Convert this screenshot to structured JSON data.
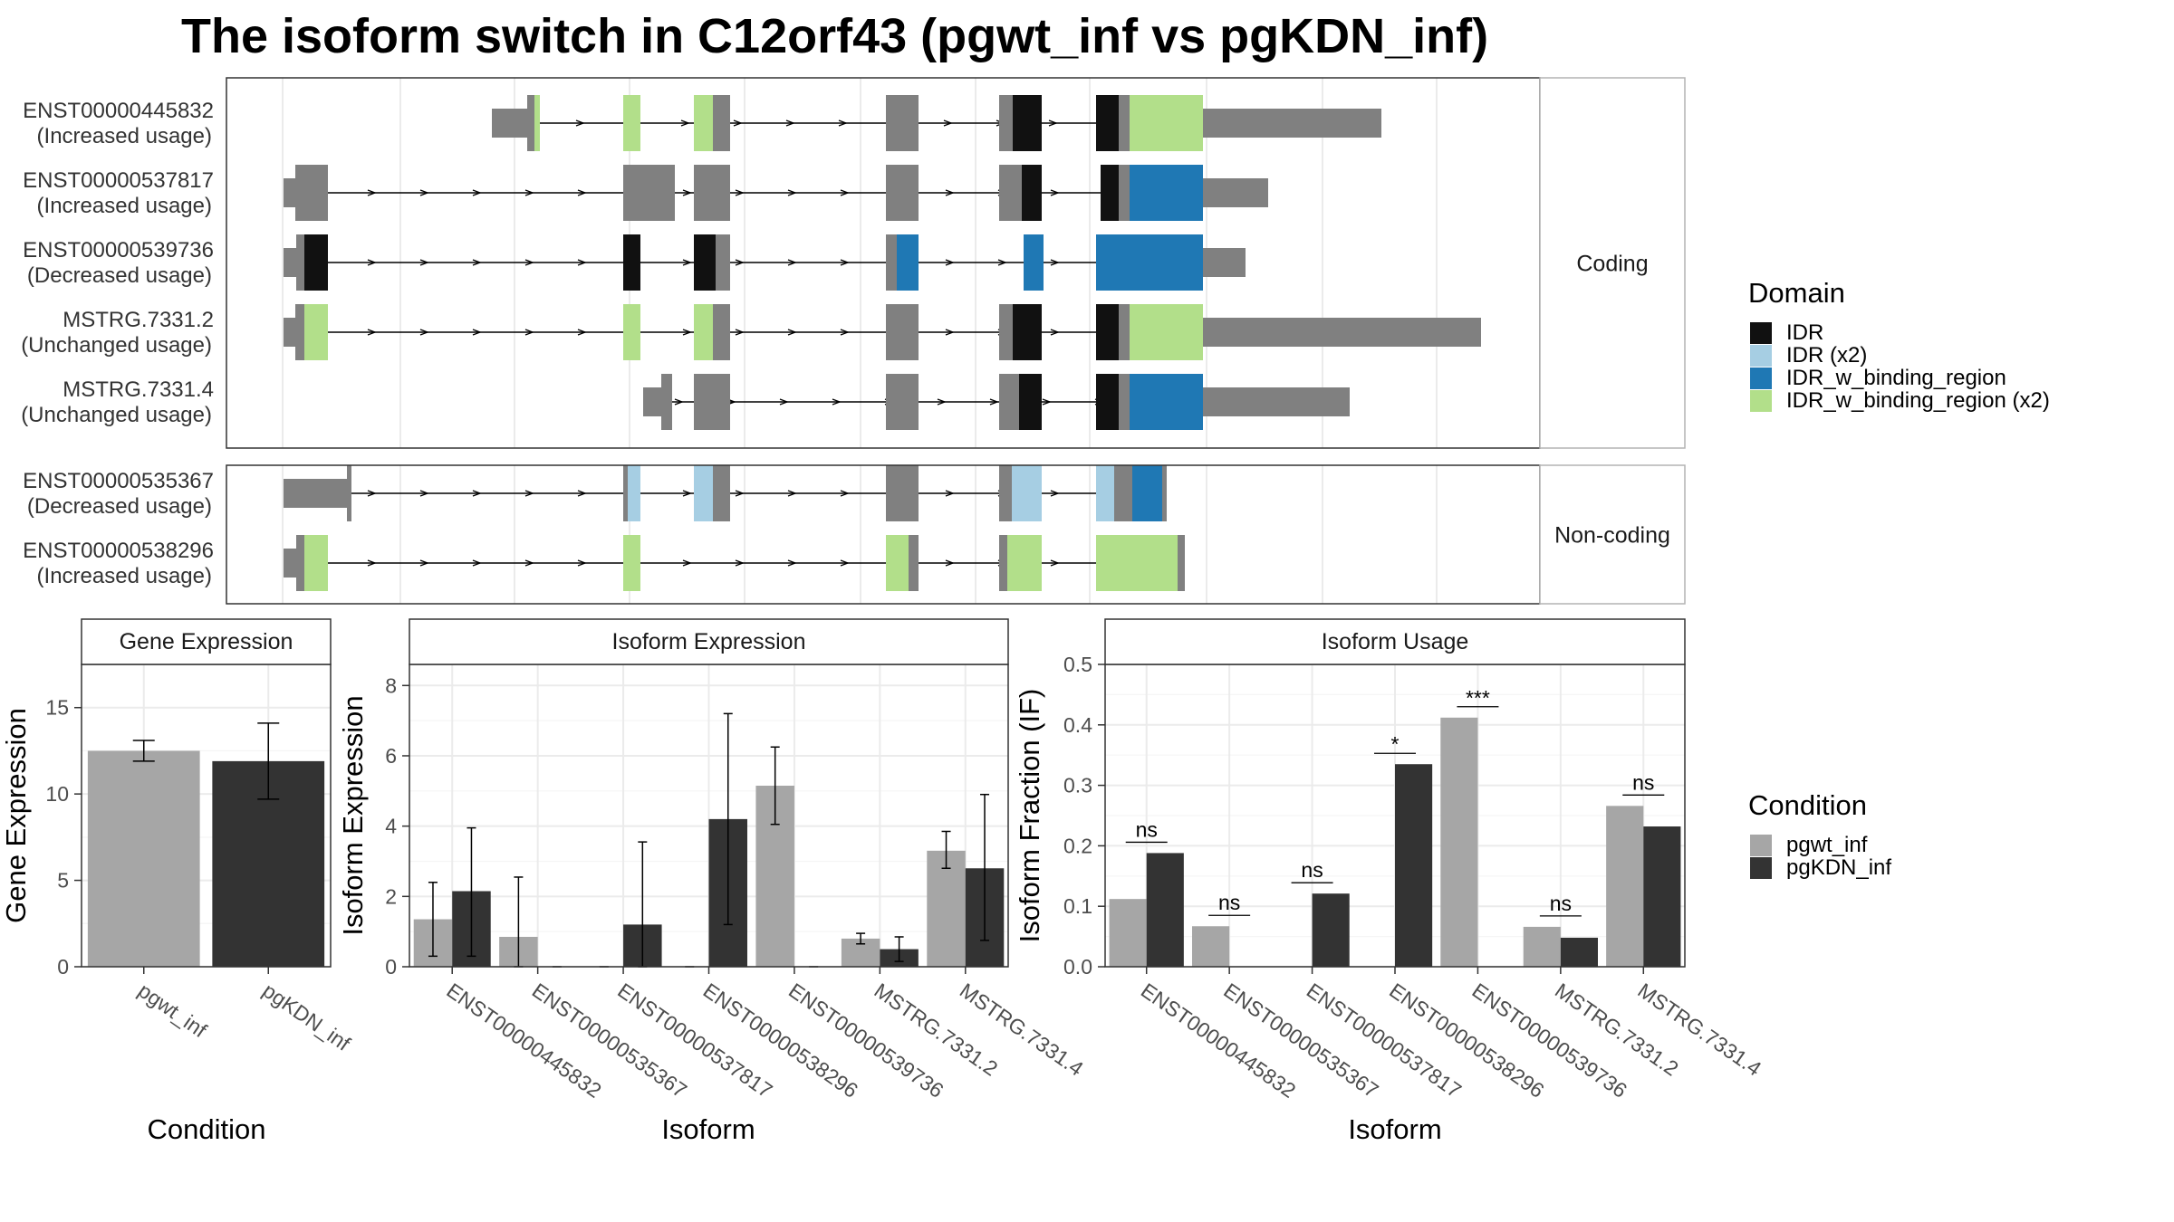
{
  "title": "The isoform switch in C12orf43 (pgwt_inf vs pgKDN_inf)",
  "structure": {
    "panels": [
      {
        "label": "Coding",
        "transcripts": [
          {
            "id": "ENST00000445832",
            "usage": "(Increased usage)"
          },
          {
            "id": "ENST00000537817",
            "usage": "(Increased usage)"
          },
          {
            "id": "ENST00000539736",
            "usage": "(Decreased usage)"
          },
          {
            "id": "MSTRG.7331.2",
            "usage": "(Unchanged usage)"
          },
          {
            "id": "MSTRG.7331.4",
            "usage": "(Unchanged usage)"
          }
        ]
      },
      {
        "label": "Non-coding",
        "transcripts": [
          {
            "id": "ENST00000535367",
            "usage": "(Decreased usage)"
          },
          {
            "id": "ENST00000538296",
            "usage": "(Increased usage)"
          }
        ]
      }
    ]
  },
  "legend_domain": {
    "title": "Domain",
    "items": [
      {
        "label": "IDR",
        "color": "#111111"
      },
      {
        "label": "IDR (x2)",
        "color": "#a6cee3"
      },
      {
        "label": "IDR_w_binding_region",
        "color": "#1f78b4"
      },
      {
        "label": "IDR_w_binding_region (x2)",
        "color": "#b2df8a"
      }
    ]
  },
  "legend_condition": {
    "title": "Condition",
    "items": [
      {
        "label": "pgwt_inf",
        "color": "#a6a6a6"
      },
      {
        "label": "pgKDN_inf",
        "color": "#333333"
      }
    ]
  },
  "chart_data": [
    {
      "type": "bar",
      "title": "Gene Expression",
      "xlabel": "Condition",
      "ylabel": "Gene Expression",
      "categories": [
        "pgwt_inf",
        "pgKDN_inf"
      ],
      "values": [
        12.5,
        11.9
      ],
      "error_low": [
        11.9,
        9.7
      ],
      "error_high": [
        13.1,
        14.1
      ],
      "ylim": [
        0,
        17.5
      ],
      "yticks": [
        0,
        5,
        10,
        15
      ]
    },
    {
      "type": "bar",
      "title": "Isoform Expression",
      "xlabel": "Isoform",
      "ylabel": "Isoform Expression",
      "categories": [
        "ENST00000445832",
        "ENST00000535367",
        "ENST00000537817",
        "ENST00000538296",
        "ENST00000539736",
        "MSTRG.7331.2",
        "MSTRG.7331.4"
      ],
      "series": [
        {
          "name": "pgwt_inf",
          "values": [
            1.35,
            0.85,
            0.0,
            0.0,
            5.15,
            0.8,
            3.3
          ],
          "error_low": [
            0.3,
            0.0,
            0.0,
            0.0,
            4.05,
            0.65,
            2.8
          ],
          "error_high": [
            2.4,
            2.55,
            0.0,
            0.0,
            6.25,
            0.95,
            3.85
          ]
        },
        {
          "name": "pgKDN_inf",
          "values": [
            2.15,
            0.0,
            1.2,
            4.2,
            0.0,
            0.5,
            2.8
          ],
          "error_low": [
            0.3,
            0.0,
            0.0,
            1.2,
            0.0,
            0.15,
            0.75
          ],
          "error_high": [
            3.95,
            0.0,
            3.55,
            7.2,
            0.0,
            0.85,
            4.9
          ]
        }
      ],
      "ylim": [
        0,
        8.6
      ],
      "yticks": [
        0,
        2,
        4,
        6,
        8
      ]
    },
    {
      "type": "bar",
      "title": "Isoform Usage",
      "xlabel": "Isoform",
      "ylabel": "Isoform Fraction (IF)",
      "categories": [
        "ENST00000445832",
        "ENST00000535367",
        "ENST00000537817",
        "ENST00000538296",
        "ENST00000539736",
        "MSTRG.7331.2",
        "MSTRG.7331.4"
      ],
      "series": [
        {
          "name": "pgwt_inf",
          "values": [
            0.112,
            0.067,
            0.0,
            0.0,
            0.412,
            0.066,
            0.266
          ]
        },
        {
          "name": "pgKDN_inf",
          "values": [
            0.188,
            0.0,
            0.121,
            0.335,
            0.0,
            0.048,
            0.232
          ]
        }
      ],
      "significance": [
        "ns",
        "ns",
        "ns",
        "*",
        "***",
        "ns",
        "ns"
      ],
      "ylim": [
        0,
        0.5
      ],
      "yticks": [
        "0.0",
        "0.1",
        "0.2",
        "0.3",
        "0.4",
        "0.5"
      ]
    }
  ]
}
